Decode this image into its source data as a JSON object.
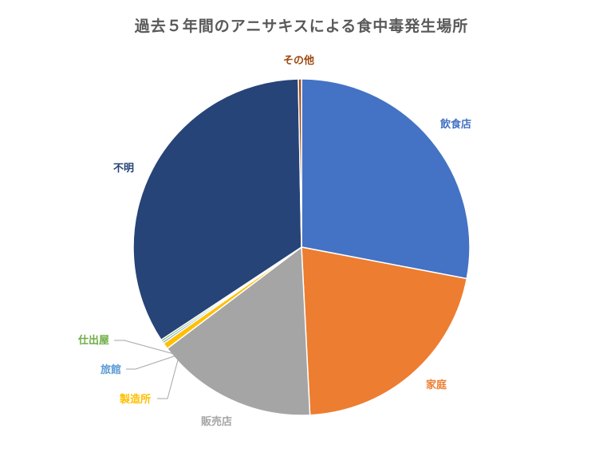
{
  "chart_data": {
    "type": "pie",
    "title": "過去５年間のアニサキスによる食中毒発生場所",
    "start_angle_deg": 0,
    "direction": "clockwise",
    "legend": "none",
    "slices": [
      {
        "label": "飲食店",
        "value": 28.0,
        "color": "#4472C4",
        "label_color": "#4472C4"
      },
      {
        "label": "家庭",
        "value": 21.2,
        "color": "#ED7D31",
        "label_color": "#ED7D31"
      },
      {
        "label": "販売店",
        "value": 15.5,
        "color": "#A5A5A5",
        "label_color": "#A5A5A5"
      },
      {
        "label": "製造所",
        "value": 0.6,
        "color": "#FFC000",
        "label_color": "#FFC000"
      },
      {
        "label": "旅館",
        "value": 0.2,
        "color": "#5B9BD5",
        "label_color": "#5B9BD5"
      },
      {
        "label": "仕出屋",
        "value": 0.2,
        "color": "#70AD47",
        "label_color": "#70AD47"
      },
      {
        "label": "不明",
        "value": 34.0,
        "color": "#264478",
        "label_color": "#264478"
      },
      {
        "label": "その他",
        "value": 0.3,
        "color": "#9E480E",
        "label_color": "#9E480E"
      }
    ]
  }
}
